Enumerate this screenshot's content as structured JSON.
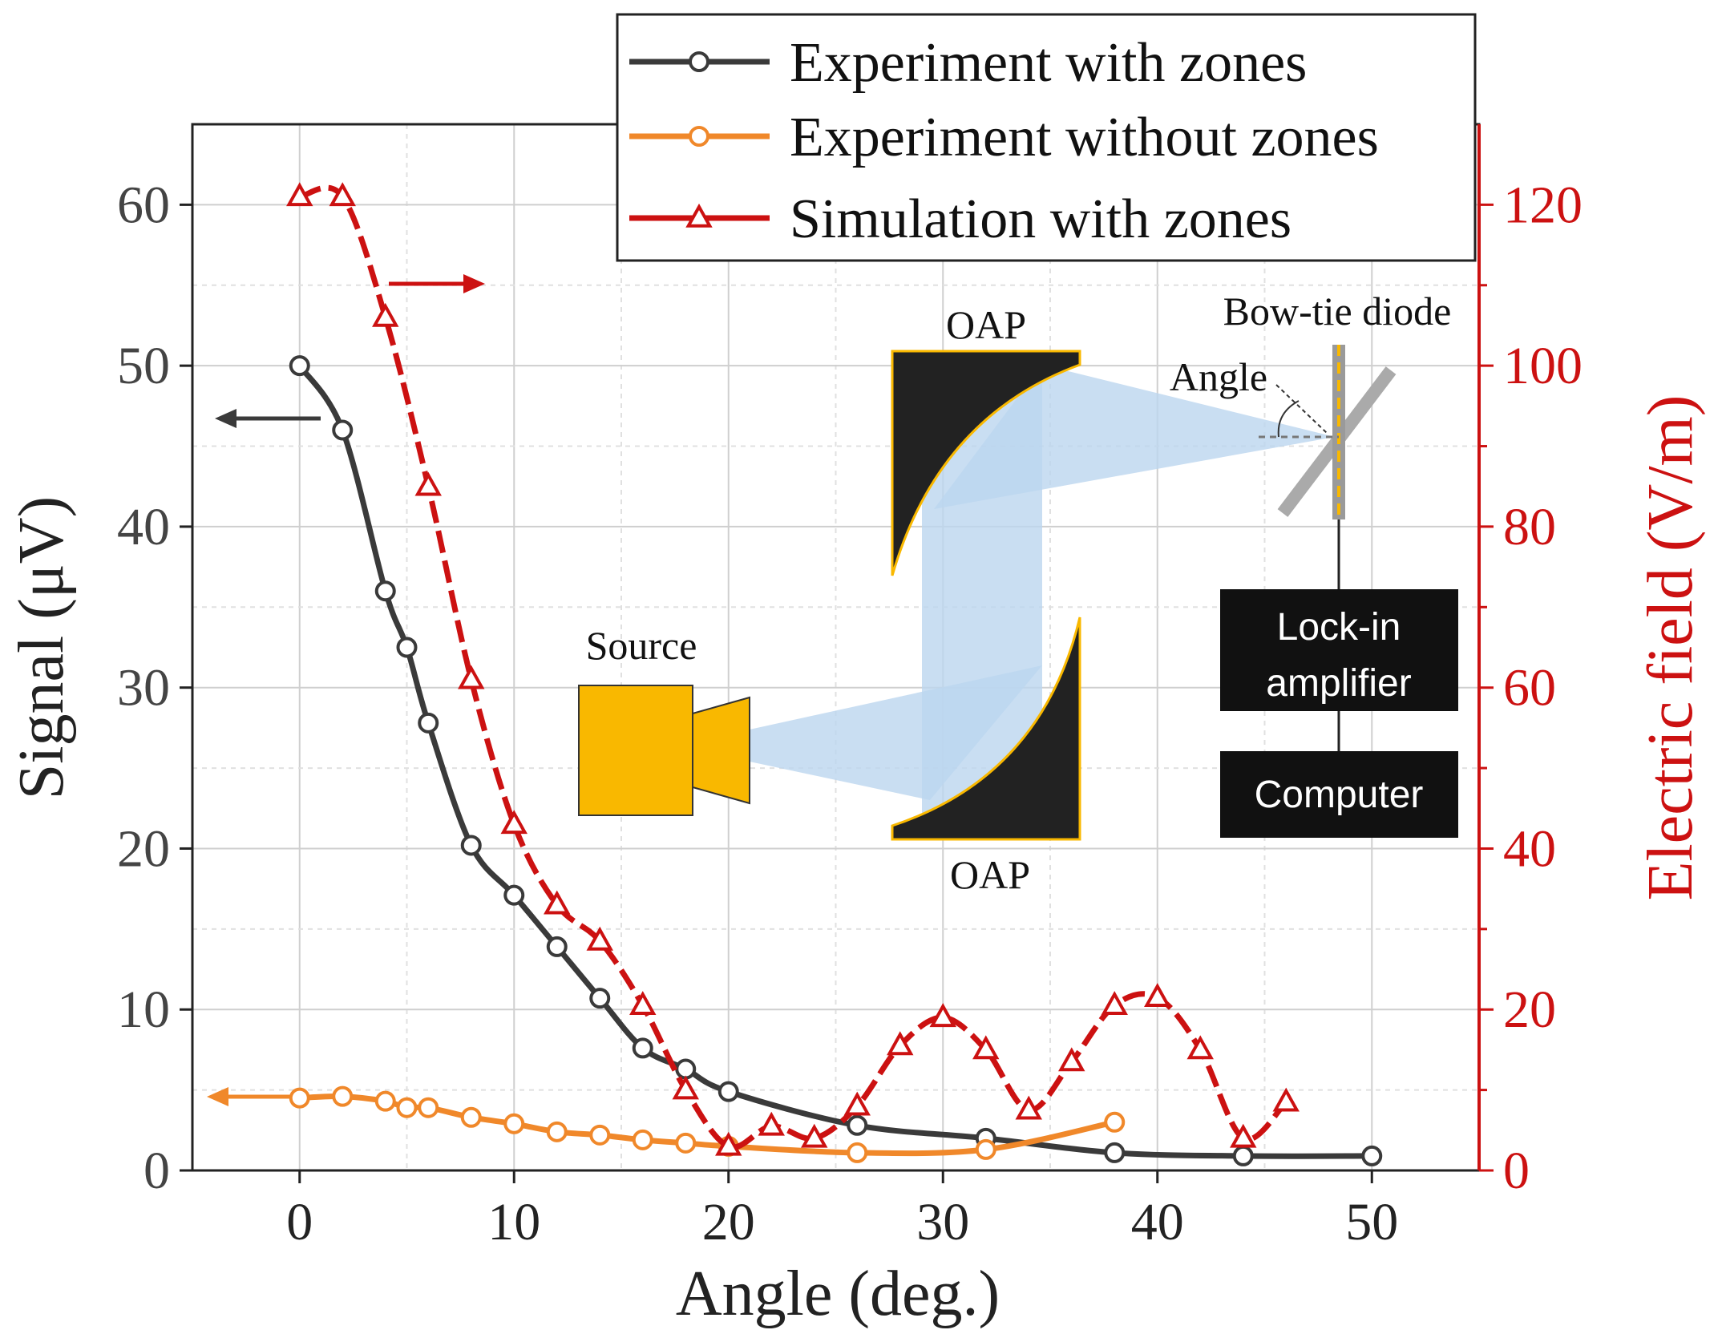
{
  "chart_data": {
    "type": "line",
    "xlabel": "Angle (deg.)",
    "ylabel": "Signal (μV)",
    "y2label": "Electric field (V/m)",
    "xlim": [
      -5,
      55
    ],
    "ylim": [
      0,
      65
    ],
    "y2lim": [
      0,
      130
    ],
    "xticks": [
      0,
      10,
      20,
      30,
      40,
      50
    ],
    "yticks": [
      0,
      10,
      20,
      30,
      40,
      50,
      60
    ],
    "y2ticks": [
      0,
      20,
      40,
      60,
      80,
      100,
      120
    ],
    "grid": true,
    "legend_position": "top-right",
    "series": [
      {
        "name": "Experiment with zones",
        "axis": "left",
        "marker": "circle",
        "color": "#3a3a3a",
        "x": [
          0,
          2,
          4,
          5,
          6,
          8,
          10,
          12,
          14,
          16,
          18,
          20,
          26,
          32,
          38,
          44,
          50
        ],
        "y": [
          50,
          46,
          36,
          32.5,
          27.8,
          20.2,
          17.1,
          13.9,
          10.7,
          7.6,
          6.3,
          4.9,
          2.8,
          2.0,
          1.1,
          0.9,
          0.9
        ]
      },
      {
        "name": "Experiment without zones",
        "axis": "left",
        "marker": "circle",
        "color": "#f0882a",
        "x": [
          0,
          2,
          4,
          5,
          6,
          8,
          10,
          12,
          14,
          16,
          18,
          20,
          26,
          32,
          38
        ],
        "y": [
          4.5,
          4.6,
          4.3,
          3.9,
          3.9,
          3.3,
          2.9,
          2.4,
          2.2,
          1.9,
          1.7,
          1.5,
          1.1,
          1.3,
          3.0
        ]
      },
      {
        "name": "Simulation with zones",
        "axis": "right",
        "marker": "triangle",
        "color": "#cc1111",
        "x": [
          0,
          2,
          4,
          6,
          8,
          10,
          12,
          14,
          16,
          18,
          20,
          22,
          24,
          26,
          28,
          30,
          32,
          34,
          36,
          38,
          40,
          42,
          44,
          46
        ],
        "y": [
          121,
          121,
          106,
          85,
          61,
          43,
          33,
          28.5,
          20.5,
          10,
          3,
          5.5,
          4,
          8,
          15.5,
          19,
          15,
          7.5,
          13.5,
          20.5,
          21.5,
          15,
          4,
          8.5
        ]
      }
    ]
  },
  "inset": {
    "oap_top": "OAP",
    "oap_bottom": "OAP",
    "bowtie": "Bow-tie diode",
    "angle": "Angle",
    "source": "Source",
    "lockin_line1": "Lock-in",
    "lockin_line2": "amplifier",
    "computer": "Computer"
  },
  "colors": {
    "black_series": "#3a3a3a",
    "orange_series": "#f0882a",
    "red_series": "#cc1111",
    "source_yellow": "#f9b800",
    "beam": "#bcd6ef",
    "mirror": "#222222"
  }
}
